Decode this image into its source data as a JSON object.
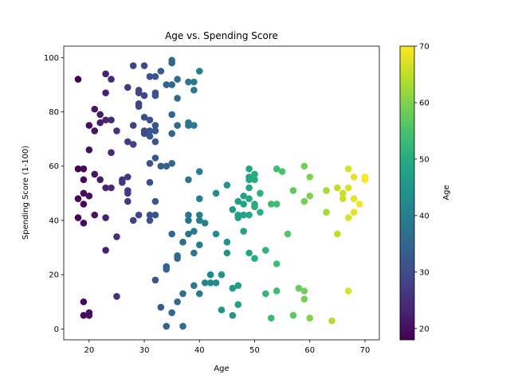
{
  "chart_data": {
    "type": "scatter",
    "title": "Age vs. Spending Score",
    "xlabel": "Age",
    "ylabel": "Spending Score (1-100)",
    "xlim": [
      15.4,
      72.6
    ],
    "ylim": [
      -4.0,
      104.2
    ],
    "xticks": [
      20,
      30,
      40,
      50,
      60,
      70
    ],
    "yticks": [
      0,
      20,
      40,
      60,
      80,
      100
    ],
    "grid": false,
    "colorbar": {
      "label": "Age",
      "colormap": "viridis",
      "range": [
        18,
        70
      ],
      "ticks": [
        20,
        30,
        40,
        50,
        60,
        70
      ]
    },
    "points": [
      [
        18,
        92
      ],
      [
        18,
        59
      ],
      [
        18,
        48
      ],
      [
        18,
        41
      ],
      [
        19,
        59
      ],
      [
        19,
        55
      ],
      [
        19,
        50
      ],
      [
        19,
        46
      ],
      [
        19,
        39
      ],
      [
        19,
        10
      ],
      [
        19,
        5
      ],
      [
        20,
        75
      ],
      [
        20,
        66
      ],
      [
        20,
        49
      ],
      [
        20,
        6
      ],
      [
        20,
        5
      ],
      [
        21,
        81
      ],
      [
        21,
        73
      ],
      [
        21,
        57
      ],
      [
        21,
        42
      ],
      [
        22,
        79
      ],
      [
        22,
        76
      ],
      [
        22,
        55
      ],
      [
        23,
        94
      ],
      [
        23,
        87
      ],
      [
        23,
        77
      ],
      [
        23,
        52
      ],
      [
        23,
        41
      ],
      [
        23,
        29
      ],
      [
        24,
        92
      ],
      [
        24,
        77
      ],
      [
        24,
        65
      ],
      [
        24,
        52
      ],
      [
        25,
        73
      ],
      [
        25,
        34
      ],
      [
        25,
        12
      ],
      [
        26,
        55
      ],
      [
        26,
        54
      ],
      [
        27,
        89
      ],
      [
        27,
        69
      ],
      [
        27,
        56
      ],
      [
        27,
        51
      ],
      [
        27,
        50
      ],
      [
        27,
        47
      ],
      [
        28,
        97
      ],
      [
        28,
        75
      ],
      [
        28,
        68
      ],
      [
        28,
        40
      ],
      [
        29,
        88
      ],
      [
        29,
        87
      ],
      [
        29,
        83
      ],
      [
        29,
        82
      ],
      [
        29,
        42
      ],
      [
        30,
        97
      ],
      [
        30,
        86
      ],
      [
        30,
        78
      ],
      [
        30,
        73
      ],
      [
        30,
        72
      ],
      [
        31,
        93
      ],
      [
        31,
        77
      ],
      [
        31,
        73
      ],
      [
        31,
        71
      ],
      [
        31,
        61
      ],
      [
        31,
        54
      ],
      [
        31,
        42
      ],
      [
        31,
        40
      ],
      [
        32,
        93
      ],
      [
        32,
        87
      ],
      [
        32,
        86
      ],
      [
        32,
        75
      ],
      [
        32,
        73
      ],
      [
        32,
        69
      ],
      [
        32,
        63
      ],
      [
        32,
        47
      ],
      [
        32,
        42
      ],
      [
        32,
        18
      ],
      [
        33,
        95
      ],
      [
        33,
        60
      ],
      [
        33,
        8
      ],
      [
        34,
        90
      ],
      [
        34,
        60
      ],
      [
        34,
        23
      ],
      [
        34,
        22
      ],
      [
        34,
        1
      ],
      [
        35,
        99
      ],
      [
        35,
        98
      ],
      [
        35,
        90
      ],
      [
        35,
        79
      ],
      [
        35,
        72
      ],
      [
        35,
        61
      ],
      [
        35,
        35
      ],
      [
        35,
        6
      ],
      [
        36,
        92
      ],
      [
        36,
        85
      ],
      [
        36,
        75
      ],
      [
        36,
        27
      ],
      [
        36,
        26
      ],
      [
        36,
        10
      ],
      [
        37,
        32
      ],
      [
        37,
        13
      ],
      [
        37,
        1
      ],
      [
        38,
        91
      ],
      [
        38,
        76
      ],
      [
        38,
        75
      ],
      [
        38,
        55
      ],
      [
        38,
        42
      ],
      [
        38,
        40
      ],
      [
        38,
        35
      ],
      [
        39,
        91
      ],
      [
        39,
        88
      ],
      [
        39,
        75
      ],
      [
        39,
        36
      ],
      [
        39,
        28
      ],
      [
        39,
        16
      ],
      [
        40,
        95
      ],
      [
        40,
        58
      ],
      [
        40,
        48
      ],
      [
        40,
        42
      ],
      [
        40,
        40
      ],
      [
        40,
        31
      ],
      [
        40,
        13
      ],
      [
        41,
        39
      ],
      [
        41,
        17
      ],
      [
        42,
        20
      ],
      [
        42,
        17
      ],
      [
        43,
        50
      ],
      [
        43,
        35
      ],
      [
        43,
        17
      ],
      [
        44,
        20
      ],
      [
        44,
        7
      ],
      [
        45,
        53
      ],
      [
        45,
        32
      ],
      [
        45,
        28
      ],
      [
        46,
        44
      ],
      [
        46,
        15
      ],
      [
        46,
        5
      ],
      [
        47,
        47
      ],
      [
        47,
        42
      ],
      [
        47,
        41
      ],
      [
        47,
        16
      ],
      [
        47,
        9
      ],
      [
        48,
        49
      ],
      [
        48,
        46
      ],
      [
        48,
        42
      ],
      [
        48,
        36
      ],
      [
        49,
        59
      ],
      [
        49,
        56
      ],
      [
        49,
        55
      ],
      [
        49,
        52
      ],
      [
        49,
        48
      ],
      [
        49,
        42
      ],
      [
        49,
        28
      ],
      [
        50,
        57
      ],
      [
        50,
        55
      ],
      [
        50,
        46
      ],
      [
        50,
        45
      ],
      [
        50,
        26
      ],
      [
        51,
        50
      ],
      [
        51,
        43
      ],
      [
        52,
        29
      ],
      [
        52,
        13
      ],
      [
        53,
        46
      ],
      [
        53,
        4
      ],
      [
        54,
        59
      ],
      [
        54,
        46
      ],
      [
        54,
        24
      ],
      [
        54,
        14
      ],
      [
        55,
        58
      ],
      [
        56,
        35
      ],
      [
        57,
        51
      ],
      [
        57,
        5
      ],
      [
        58,
        15
      ],
      [
        59,
        60
      ],
      [
        59,
        47
      ],
      [
        59,
        14
      ],
      [
        59,
        11
      ],
      [
        60,
        56
      ],
      [
        60,
        49
      ],
      [
        60,
        4
      ],
      [
        63,
        51
      ],
      [
        63,
        43
      ],
      [
        64,
        3
      ],
      [
        65,
        52
      ],
      [
        65,
        35
      ],
      [
        66,
        50
      ],
      [
        66,
        48
      ],
      [
        67,
        59
      ],
      [
        67,
        52
      ],
      [
        67,
        41
      ],
      [
        67,
        14
      ],
      [
        68,
        56
      ],
      [
        68,
        48
      ],
      [
        68,
        43
      ],
      [
        69,
        46
      ],
      [
        70,
        56
      ],
      [
        70,
        55
      ]
    ]
  }
}
